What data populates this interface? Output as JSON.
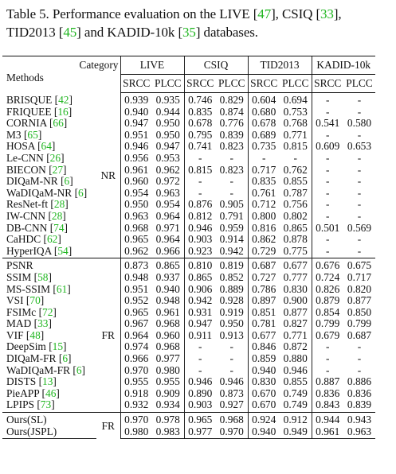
{
  "caption": [
    {
      "text": "Table 5.  Performance evaluation on the LIVE ["
    },
    {
      "text": "47",
      "ref": true
    },
    {
      "text": "], CSIQ ["
    },
    {
      "text": "33",
      "ref": true
    },
    {
      "text": "], TID2013 ["
    },
    {
      "text": "45",
      "ref": true
    },
    {
      "text": "] and KADID-10k ["
    },
    {
      "text": "35",
      "ref": true
    },
    {
      "text": "] databases."
    }
  ],
  "header": {
    "methods": "Methods",
    "category": "Category",
    "databases": [
      "LIVE",
      "CSIQ",
      "TID2013",
      "KADID-10k"
    ],
    "metrics": [
      "SRCC",
      "PLCC"
    ]
  },
  "groups": [
    {
      "category": "NR",
      "rows": [
        {
          "name": "BRISQUE",
          "ref": "42",
          "v": [
            "0.939",
            "0.935",
            "0.746",
            "0.829",
            "0.604",
            "0.694",
            "-",
            "-"
          ]
        },
        {
          "name": "FRIQUEE",
          "ref": "16",
          "v": [
            "0.940",
            "0.944",
            "0.835",
            "0.874",
            "0.680",
            "0.753",
            "-",
            "-"
          ]
        },
        {
          "name": "CORNIA",
          "ref": "66",
          "v": [
            "0.947",
            "0.950",
            "0.678",
            "0.776",
            "0.678",
            "0.768",
            "0.541",
            "0.580"
          ]
        },
        {
          "name": "M3",
          "ref": "65",
          "v": [
            "0.951",
            "0.950",
            "0.795",
            "0.839",
            "0.689",
            "0.771",
            "-",
            "-"
          ]
        },
        {
          "name": "HOSA",
          "ref": "64",
          "v": [
            "0.946",
            "0.947",
            "0.741",
            "0.823",
            "0.735",
            "0.815",
            "0.609",
            "0.653"
          ]
        },
        {
          "name": "Le-CNN",
          "ref": "26",
          "v": [
            "0.956",
            "0.953",
            "-",
            "-",
            "-",
            "-",
            "-",
            "-"
          ]
        },
        {
          "name": "BIECON",
          "ref": "27",
          "v": [
            "0.961",
            "0.962",
            "0.815",
            "0.823",
            "0.717",
            "0.762",
            "-",
            "-"
          ]
        },
        {
          "name": "DIQaM-NR",
          "ref": "6",
          "v": [
            "0.960",
            "0.972",
            "-",
            "-",
            "0.835",
            "0.855",
            "-",
            "-"
          ]
        },
        {
          "name": "WaDIQaM-NR",
          "ref": "6",
          "v": [
            "0.954",
            "0.963",
            "-",
            "-",
            "0.761",
            "0.787",
            "-",
            "-"
          ]
        },
        {
          "name": "ResNet-ft",
          "ref": "28",
          "v": [
            "0.950",
            "0.954",
            "0.876",
            "0.905",
            "0.712",
            "0.756",
            "-",
            "-"
          ]
        },
        {
          "name": "IW-CNN",
          "ref": "28",
          "v": [
            "0.963",
            "0.964",
            "0.812",
            "0.791",
            "0.800",
            "0.802",
            "-",
            "-"
          ]
        },
        {
          "name": "DB-CNN",
          "ref": "74",
          "v": [
            "0.968",
            "0.971",
            "0.946",
            "0.959",
            "0.816",
            "0.865",
            "0.501",
            "0.569"
          ]
        },
        {
          "name": "CaHDC",
          "ref": "62",
          "v": [
            "0.965",
            "0.964",
            "0.903",
            "0.914",
            "0.862",
            "0.878",
            "-",
            "-"
          ]
        },
        {
          "name": "HyperIQA",
          "ref": "54",
          "v": [
            "0.962",
            "0.966",
            "0.923",
            "0.942",
            "0.729",
            "0.775",
            "-",
            "-"
          ]
        }
      ]
    },
    {
      "category": "FR",
      "rows": [
        {
          "name": "PSNR",
          "ref": "",
          "v": [
            "0.873",
            "0.865",
            "0.810",
            "0.819",
            "0.687",
            "0.677",
            "0.676",
            "0.675"
          ]
        },
        {
          "name": "SSIM",
          "ref": "58",
          "v": [
            "0.948",
            "0.937",
            "0.865",
            "0.852",
            "0.727",
            "0.777",
            "0.724",
            "0.717"
          ]
        },
        {
          "name": "MS-SSIM",
          "ref": "61",
          "v": [
            "0.951",
            "0.940",
            "0.906",
            "0.889",
            "0.786",
            "0.830",
            "0.826",
            "0.820"
          ]
        },
        {
          "name": "VSI",
          "ref": "70",
          "v": [
            "0.952",
            "0.948",
            "0.942",
            "0.928",
            "0.897",
            "0.900",
            "0.879",
            "0.877"
          ]
        },
        {
          "name": "FSIMc",
          "ref": "72",
          "v": [
            "0.965",
            "0.961",
            "0.931",
            "0.919",
            "0.851",
            "0.877",
            "0.854",
            "0.850"
          ]
        },
        {
          "name": "MAD",
          "ref": "33",
          "v": [
            "0.967",
            "0.968",
            "0.947",
            "0.950",
            "0.781",
            "0.827",
            "0.799",
            "0.799"
          ]
        },
        {
          "name": "VIF",
          "ref": "48",
          "v": [
            "0.964",
            "0.960",
            "0.911",
            "0.913",
            "0.677",
            "0.771",
            "0.679",
            "0.687"
          ]
        },
        {
          "name": "DeepSim",
          "ref": "15",
          "v": [
            "0.974",
            "0.968",
            "-",
            "-",
            "0.846",
            "0.872",
            "-",
            "-"
          ]
        },
        {
          "name": "DIQaM-FR",
          "ref": "6",
          "v": [
            "0.966",
            "0.977",
            "-",
            "-",
            "0.859",
            "0.880",
            "-",
            "-"
          ]
        },
        {
          "name": "WaDIQaM-FR",
          "ref": "6",
          "v": [
            "0.970",
            "0.980",
            "-",
            "-",
            "0.940",
            "0.946",
            "-",
            "-"
          ],
          "bold": [
            4
          ]
        },
        {
          "name": "DISTS",
          "ref": "13",
          "v": [
            "0.955",
            "0.955",
            "0.946",
            "0.946",
            "0.830",
            "0.855",
            "0.887",
            "0.886"
          ]
        },
        {
          "name": "PieAPP",
          "ref": "46",
          "v": [
            "0.918",
            "0.909",
            "0.890",
            "0.873",
            "0.670",
            "0.749",
            "0.836",
            "0.836"
          ]
        },
        {
          "name": "LPIPS",
          "ref": "73",
          "v": [
            "0.932",
            "0.934",
            "0.903",
            "0.927",
            "0.670",
            "0.749",
            "0.843",
            "0.839"
          ]
        }
      ]
    },
    {
      "category": "FR",
      "rows": [
        {
          "name": "Ours(SL)",
          "ref": "",
          "v": [
            "0.970",
            "0.978",
            "0.965",
            "0.968",
            "0.924",
            "0.912",
            "0.944",
            "0.943"
          ]
        },
        {
          "name": "Ours(JSPL)",
          "ref": "",
          "v": [
            "0.980",
            "0.983",
            "0.977",
            "0.970",
            "0.940",
            "0.949",
            "0.961",
            "0.963"
          ],
          "bold": [
            0,
            1,
            2,
            3,
            4,
            5,
            6,
            7
          ]
        }
      ]
    }
  ]
}
